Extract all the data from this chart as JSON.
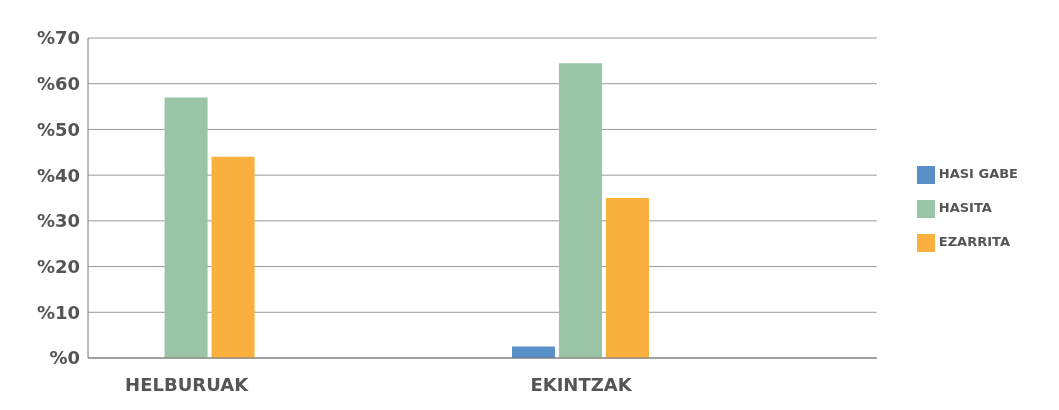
{
  "chart_data": {
    "type": "bar",
    "categories": [
      "HELBURUAK",
      null,
      "EKINTZAK",
      null
    ],
    "series": [
      {
        "name": "HASI GABE",
        "color": "#5b8fc7",
        "values": [
          0,
          null,
          2.5,
          null
        ]
      },
      {
        "name": "HASITA",
        "color": "#9ac4a6",
        "values": [
          57,
          null,
          64.5,
          null
        ]
      },
      {
        "name": "EZARRITA",
        "color": "#f9b03f",
        "values": [
          44,
          null,
          35,
          null
        ]
      }
    ],
    "ylim": [
      0,
      70
    ],
    "yticks": [
      {
        "value": 0,
        "label": "%0"
      },
      {
        "value": 10,
        "label": "%10"
      },
      {
        "value": 20,
        "label": "%20"
      },
      {
        "value": 30,
        "label": "%30"
      },
      {
        "value": 40,
        "label": "%40"
      },
      {
        "value": 50,
        "label": "%50"
      },
      {
        "value": 60,
        "label": "%60"
      },
      {
        "value": 70,
        "label": "%70"
      }
    ],
    "grid": "y",
    "legend": "right"
  }
}
